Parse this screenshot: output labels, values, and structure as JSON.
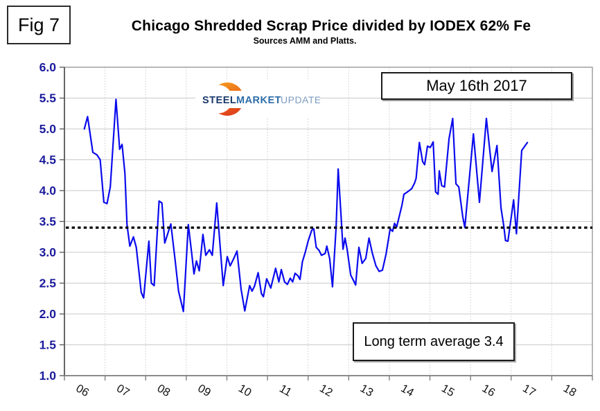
{
  "figure_label": "Fig 7",
  "title": "Chicago Shredded Scrap Price divided by IODEX 62% Fe",
  "subtitle": "Sources AMM and Platts.",
  "logo": {
    "word1": "STEEL",
    "word2": "MARKET",
    "word3": "UPDATE"
  },
  "annotations": {
    "date_box": "May 16th 2017",
    "average_box": "Long term average 3.4"
  },
  "colors": {
    "series": "#0a0aee",
    "average_line": "#050505",
    "y_labels": "#1a1a9c",
    "x_labels": "#141414",
    "grid": "#c9c9c9",
    "border": "#999999",
    "logo_steel": "#1b3a6b",
    "logo_market": "#2d6ca8",
    "logo_update": "#7d9cc0",
    "logo_orange_light": "#f7a21c",
    "logo_orange_dark": "#e0451b"
  },
  "chart_data": {
    "type": "line",
    "title": "Chicago Shredded Scrap Price divided by IODEX 62% Fe",
    "subtitle": "Sources AMM and Platts.",
    "xlabel": "",
    "ylabel": "",
    "x_range": [
      2006,
      2019
    ],
    "ylim": [
      1.0,
      6.0
    ],
    "y_tick_step": 0.5,
    "y_tick_labels": [
      "6.0",
      "5.5",
      "5.0",
      "4.5",
      "4.0",
      "3.5",
      "3.0",
      "2.5",
      "2.0",
      "1.5",
      "1.0"
    ],
    "x_tick_labels": [
      "06",
      "07",
      "08",
      "09",
      "10",
      "11",
      "12",
      "13",
      "14",
      "15",
      "16",
      "17",
      "18"
    ],
    "grid": {
      "horizontal": "solid",
      "vertical": "dotted"
    },
    "legend": "none",
    "average_line": {
      "value": 3.4,
      "label": "Long term average 3.4",
      "style": "dotted",
      "color": "#050505"
    },
    "series": [
      {
        "name": "Chicago Shredded Scrap Price / IODEX 62% Fe",
        "color": "#0a0aee",
        "points": [
          [
            2006.49,
            5.0
          ],
          [
            2006.57,
            5.2
          ],
          [
            2006.7,
            4.62
          ],
          [
            2006.8,
            4.58
          ],
          [
            2006.88,
            4.5
          ],
          [
            2006.97,
            3.81
          ],
          [
            2007.05,
            3.79
          ],
          [
            2007.13,
            4.06
          ],
          [
            2007.27,
            5.48
          ],
          [
            2007.36,
            4.67
          ],
          [
            2007.42,
            4.75
          ],
          [
            2007.49,
            4.28
          ],
          [
            2007.54,
            3.45
          ],
          [
            2007.61,
            3.1
          ],
          [
            2007.7,
            3.25
          ],
          [
            2007.77,
            3.08
          ],
          [
            2007.89,
            2.35
          ],
          [
            2007.95,
            2.26
          ],
          [
            2008.08,
            3.18
          ],
          [
            2008.14,
            2.5
          ],
          [
            2008.21,
            2.46
          ],
          [
            2008.33,
            3.83
          ],
          [
            2008.4,
            3.8
          ],
          [
            2008.47,
            3.15
          ],
          [
            2008.62,
            3.46
          ],
          [
            2008.73,
            2.85
          ],
          [
            2008.81,
            2.37
          ],
          [
            2008.93,
            2.04
          ],
          [
            2009.05,
            3.45
          ],
          [
            2009.13,
            3.0
          ],
          [
            2009.19,
            2.65
          ],
          [
            2009.25,
            2.86
          ],
          [
            2009.32,
            2.7
          ],
          [
            2009.41,
            3.29
          ],
          [
            2009.48,
            2.95
          ],
          [
            2009.57,
            3.04
          ],
          [
            2009.64,
            2.95
          ],
          [
            2009.75,
            3.8
          ],
          [
            2009.91,
            2.46
          ],
          [
            2010.01,
            2.93
          ],
          [
            2010.08,
            2.78
          ],
          [
            2010.17,
            2.9
          ],
          [
            2010.25,
            3.02
          ],
          [
            2010.35,
            2.4
          ],
          [
            2010.44,
            2.05
          ],
          [
            2010.56,
            2.46
          ],
          [
            2010.62,
            2.37
          ],
          [
            2010.68,
            2.45
          ],
          [
            2010.77,
            2.67
          ],
          [
            2010.85,
            2.33
          ],
          [
            2010.9,
            2.28
          ],
          [
            2010.98,
            2.57
          ],
          [
            2011.08,
            2.42
          ],
          [
            2011.2,
            2.74
          ],
          [
            2011.28,
            2.52
          ],
          [
            2011.34,
            2.72
          ],
          [
            2011.42,
            2.52
          ],
          [
            2011.49,
            2.48
          ],
          [
            2011.56,
            2.58
          ],
          [
            2011.62,
            2.52
          ],
          [
            2011.68,
            2.66
          ],
          [
            2011.75,
            2.62
          ],
          [
            2011.8,
            2.56
          ],
          [
            2011.86,
            2.85
          ],
          [
            2011.93,
            3.0
          ],
          [
            2012.0,
            3.18
          ],
          [
            2012.09,
            3.36
          ],
          [
            2012.14,
            3.38
          ],
          [
            2012.2,
            3.08
          ],
          [
            2012.27,
            3.03
          ],
          [
            2012.33,
            2.95
          ],
          [
            2012.42,
            2.98
          ],
          [
            2012.46,
            3.1
          ],
          [
            2012.53,
            2.9
          ],
          [
            2012.6,
            2.44
          ],
          [
            2012.69,
            3.4
          ],
          [
            2012.74,
            4.35
          ],
          [
            2012.81,
            3.6
          ],
          [
            2012.86,
            3.05
          ],
          [
            2012.91,
            3.23
          ],
          [
            2012.96,
            3.05
          ],
          [
            2013.05,
            2.63
          ],
          [
            2013.12,
            2.54
          ],
          [
            2013.17,
            2.47
          ],
          [
            2013.25,
            3.08
          ],
          [
            2013.33,
            2.82
          ],
          [
            2013.42,
            2.9
          ],
          [
            2013.5,
            3.23
          ],
          [
            2013.58,
            2.99
          ],
          [
            2013.67,
            2.78
          ],
          [
            2013.75,
            2.69
          ],
          [
            2013.83,
            2.71
          ],
          [
            2013.92,
            2.97
          ],
          [
            2014.02,
            3.38
          ],
          [
            2014.08,
            3.34
          ],
          [
            2014.13,
            3.47
          ],
          [
            2014.18,
            3.41
          ],
          [
            2014.31,
            3.76
          ],
          [
            2014.36,
            3.94
          ],
          [
            2014.45,
            3.98
          ],
          [
            2014.55,
            4.03
          ],
          [
            2014.62,
            4.12
          ],
          [
            2014.66,
            4.2
          ],
          [
            2014.74,
            4.78
          ],
          [
            2014.82,
            4.47
          ],
          [
            2014.87,
            4.42
          ],
          [
            2014.94,
            4.72
          ],
          [
            2015.01,
            4.7
          ],
          [
            2015.08,
            4.79
          ],
          [
            2015.14,
            3.98
          ],
          [
            2015.2,
            3.94
          ],
          [
            2015.23,
            4.32
          ],
          [
            2015.29,
            4.08
          ],
          [
            2015.36,
            4.06
          ],
          [
            2015.47,
            4.84
          ],
          [
            2015.56,
            5.17
          ],
          [
            2015.64,
            4.11
          ],
          [
            2015.71,
            4.06
          ],
          [
            2015.81,
            3.57
          ],
          [
            2015.86,
            3.4
          ],
          [
            2016.07,
            4.92
          ],
          [
            2016.22,
            3.81
          ],
          [
            2016.39,
            5.17
          ],
          [
            2016.53,
            4.31
          ],
          [
            2016.65,
            4.73
          ],
          [
            2016.75,
            3.72
          ],
          [
            2016.82,
            3.42
          ],
          [
            2016.86,
            3.19
          ],
          [
            2016.92,
            3.18
          ],
          [
            2017.06,
            3.85
          ],
          [
            2017.13,
            3.3
          ],
          [
            2017.26,
            4.65
          ],
          [
            2017.4,
            4.78
          ]
        ]
      }
    ]
  }
}
